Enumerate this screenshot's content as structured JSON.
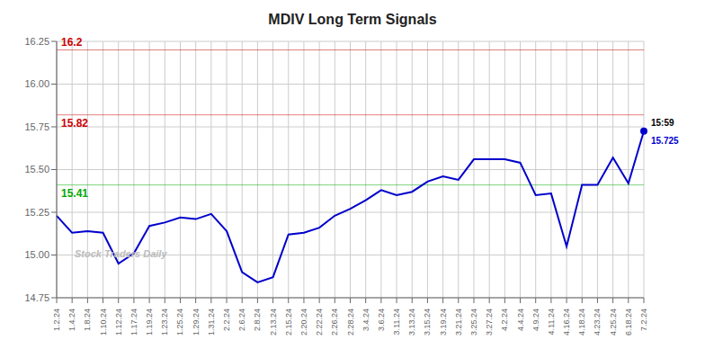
{
  "chart_data": {
    "type": "line",
    "title": "MDIV Long Term Signals",
    "categories": [
      "1.2.24",
      "1.4.24",
      "1.8.24",
      "1.10.24",
      "1.12.24",
      "1.17.24",
      "1.19.24",
      "1.23.24",
      "1.25.24",
      "1.29.24",
      "1.31.24",
      "2.2.24",
      "2.6.24",
      "2.8.24",
      "2.13.24",
      "2.15.24",
      "2.20.24",
      "2.22.24",
      "2.26.24",
      "2.28.24",
      "3.4.24",
      "3.6.24",
      "3.11.24",
      "3.13.24",
      "3.15.24",
      "3.19.24",
      "3.21.24",
      "3.25.24",
      "3.27.24",
      "4.2.24",
      "4.4.24",
      "4.9.24",
      "4.11.24",
      "4.16.24",
      "4.18.24",
      "4.23.24",
      "4.25.24",
      "6.18.24",
      "7.2.24"
    ],
    "values": [
      15.23,
      15.13,
      15.14,
      15.13,
      14.95,
      15.01,
      15.17,
      15.19,
      15.22,
      15.21,
      15.24,
      15.14,
      14.9,
      14.84,
      14.87,
      15.12,
      15.13,
      15.16,
      15.23,
      15.27,
      15.32,
      15.38,
      15.35,
      15.37,
      15.43,
      15.46,
      15.44,
      15.56,
      15.56,
      15.56,
      15.54,
      15.35,
      15.36,
      15.05,
      15.41,
      15.41,
      15.57,
      15.42,
      15.725
    ],
    "color": "#0000cc",
    "ylim": [
      14.75,
      16.25
    ],
    "yticks": [
      14.75,
      {
        "value": 15.0,
        "label": "15.00"
      },
      15.25,
      {
        "value": 15.5,
        "label": "15.50"
      },
      15.75,
      {
        "value": 16.0,
        "label": "16.00"
      },
      16.25
    ],
    "grid": true,
    "hlines": [
      {
        "value": 16.2,
        "label": "16.2",
        "color": "#cc0000"
      },
      {
        "value": 15.82,
        "label": "15.82",
        "color": "#cc0000"
      },
      {
        "value": 15.41,
        "label": "15.41",
        "color": "#00aa00"
      }
    ],
    "annotations": [
      {
        "text": "15:59",
        "x": "7.2.24",
        "y": 15.725
      },
      {
        "text": "15.725",
        "x": "7.2.24",
        "y": 15.725
      },
      {
        "text": "Stock Traders Daily"
      }
    ]
  }
}
